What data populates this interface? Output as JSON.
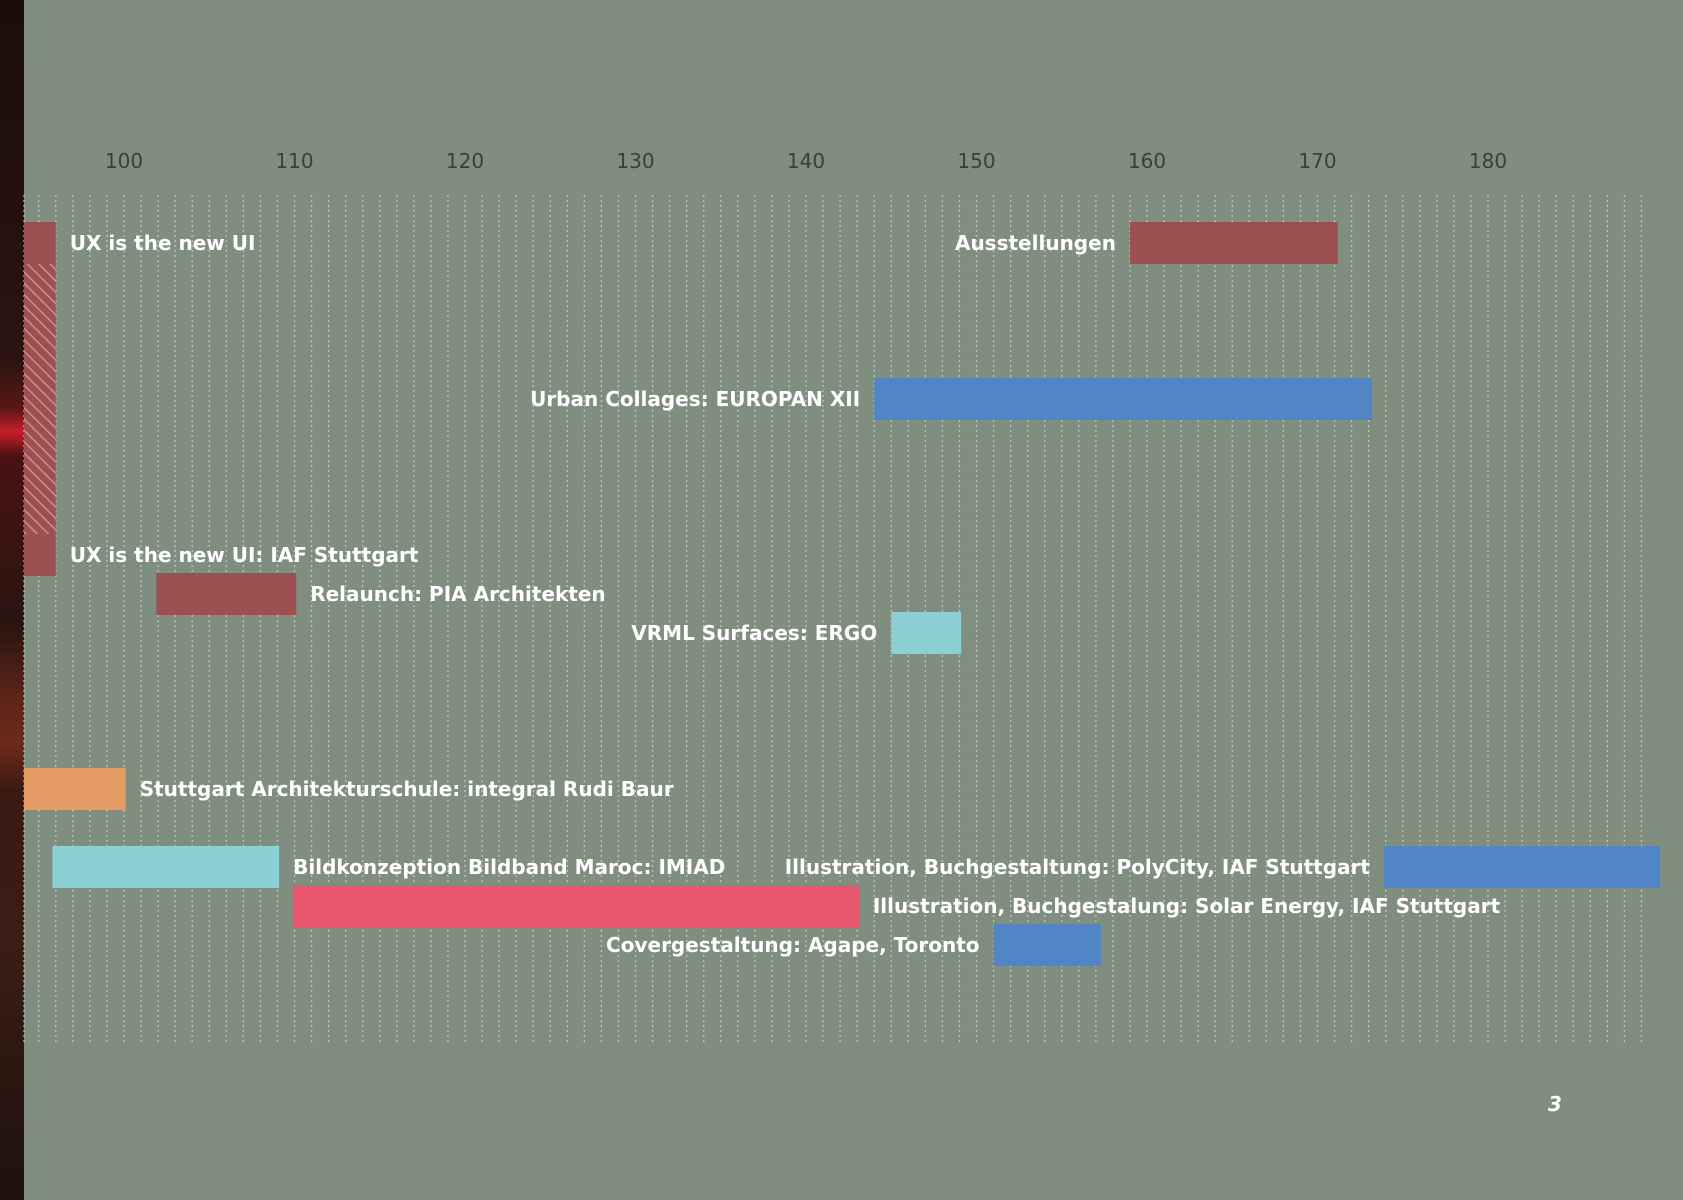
{
  "page_number": "3",
  "chart_data": {
    "type": "bar",
    "orientation": "horizontal",
    "subtype": "timeline",
    "title": "",
    "xlabel": "",
    "ylabel": "",
    "xlim": [
      93.8,
      189
    ],
    "x_ticks": [
      100,
      110,
      120,
      130,
      140,
      150,
      160,
      170,
      180
    ],
    "grid": true,
    "grid_style": "vertical dashed lines, every unit",
    "background_color": "#808e80",
    "tasks": [
      {
        "label": "UX is the new UI",
        "start": 93.8,
        "end": 96.0,
        "lane": 0,
        "color": "#9c5050",
        "label_side": "right"
      },
      {
        "label": "",
        "start": 93.8,
        "end": 96.0,
        "lane_from": 0,
        "lane_to": 8,
        "color": "#9c5050",
        "style": "hatched"
      },
      {
        "label": "Ausstellungen",
        "start": 159.0,
        "end": 171.2,
        "lane": 0,
        "color": "#9c5050",
        "label_side": "left"
      },
      {
        "label": "Urban Collages: EUROPAN XII",
        "start": 144.0,
        "end": 173.2,
        "lane": 4,
        "color": "#5285c6",
        "label_side": "left"
      },
      {
        "label": "UX is the new UI: IAF Stuttgart",
        "start": 93.8,
        "end": 96.0,
        "lane": 8,
        "color": "#9c5050",
        "label_side": "right"
      },
      {
        "label": "Relaunch: PIA Architekten",
        "start": 101.9,
        "end": 110.1,
        "lane": 9,
        "color": "#9c5050",
        "label_side": "right"
      },
      {
        "label": "VRML Surfaces: ERGO",
        "start": 145.0,
        "end": 149.1,
        "lane": 10,
        "color": "#8ccfd4",
        "label_side": "left"
      },
      {
        "label": "Stuttgart Architekturschule: integral Rudi Baur",
        "start": 93.8,
        "end": 100.1,
        "lane": 14,
        "color": "#e49c64",
        "label_side": "right"
      },
      {
        "label": "Bildkonzeption Bildband Maroc: IMIAD",
        "start": 95.8,
        "end": 109.1,
        "lane": 16,
        "color": "#8ccfd4",
        "label_side": "right"
      },
      {
        "label": "Illustration, Buchgestaltung: PolyCity, IAF Stuttgart",
        "start": 173.9,
        "end": 190.1,
        "lane": 16,
        "color": "#5285c6",
        "label_side": "left"
      },
      {
        "label": "Illustration, Buchgestalung: Solar Energy, IAF Stuttgart",
        "start": 109.9,
        "end": 143.1,
        "lane": 17,
        "color": "#e8586c",
        "label_side": "right"
      },
      {
        "label": "Covergestaltung: Agape, Toronto",
        "start": 151.0,
        "end": 157.3,
        "lane": 18,
        "color": "#5285c6",
        "label_side": "left"
      }
    ]
  }
}
